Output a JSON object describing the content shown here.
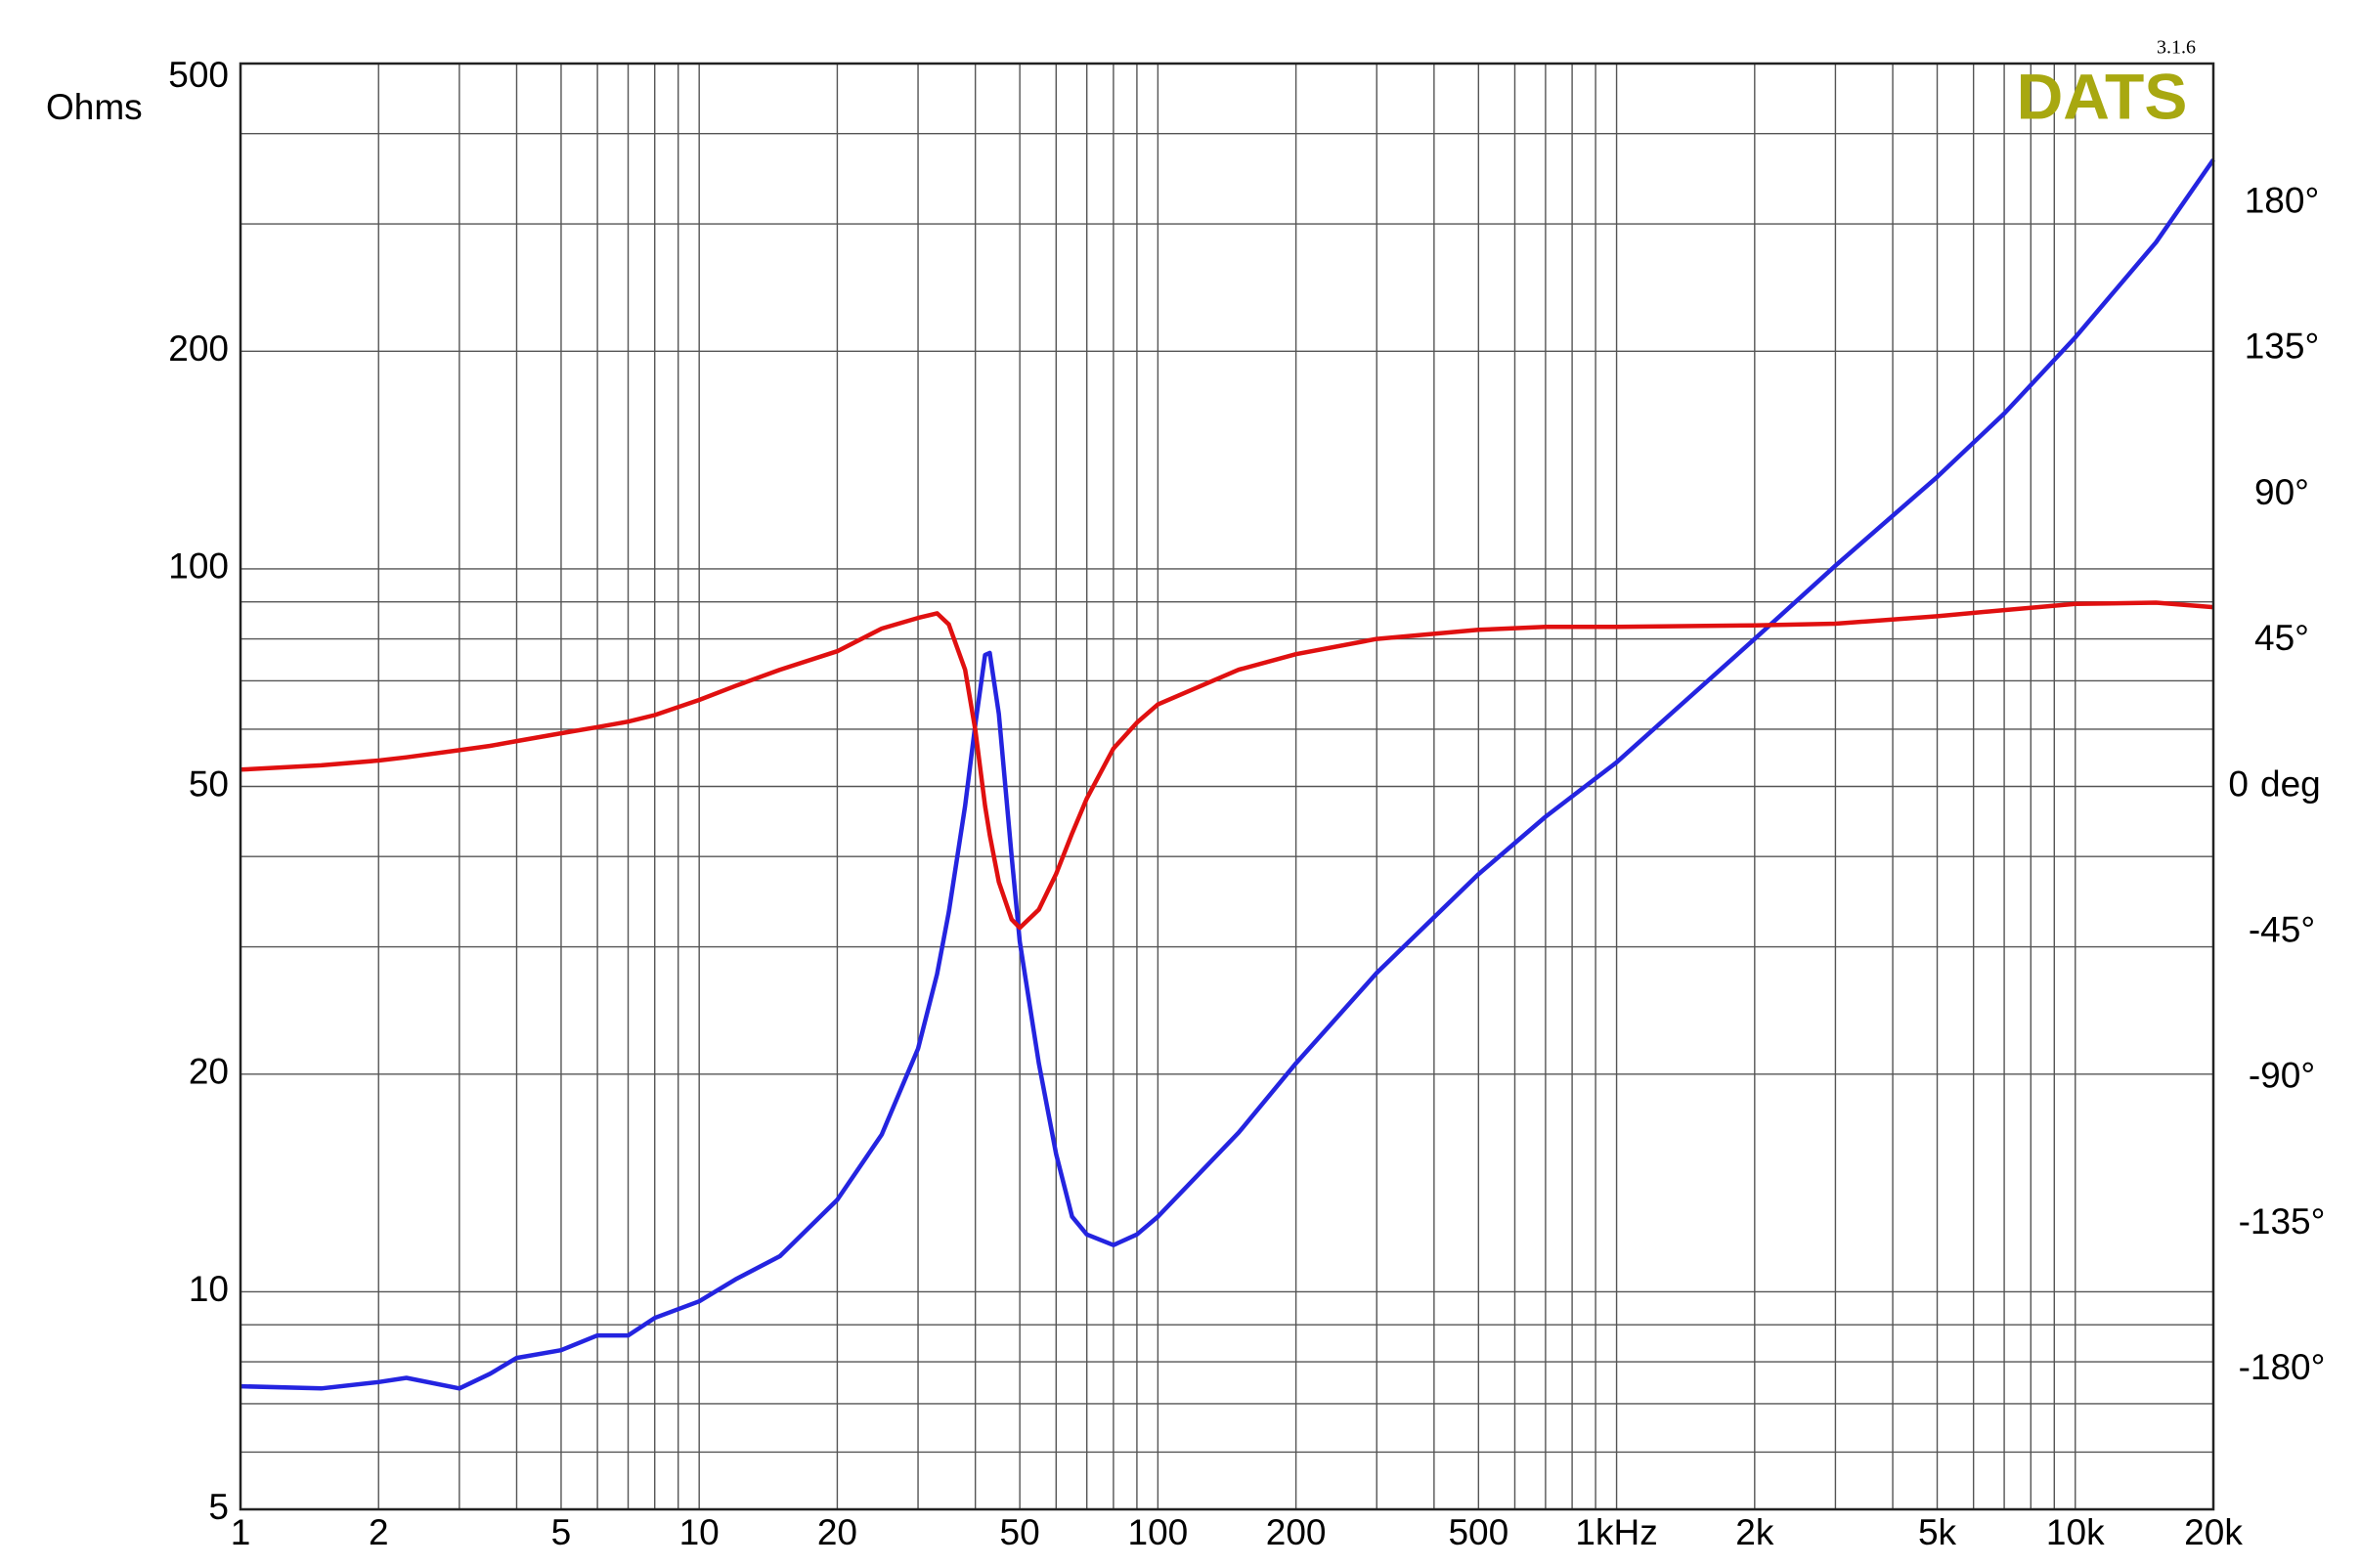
{
  "chart_data": {
    "type": "line",
    "ylabel": "Ohms",
    "y2label": "deg",
    "watermark": "DATS",
    "version": "3.1.6",
    "xscale": "log",
    "yscale": "log",
    "grid": true,
    "xlim": [
      1,
      20000
    ],
    "ylim": [
      5,
      500
    ],
    "y2lim": [
      -223,
      223
    ],
    "xticks": [
      1,
      2,
      5,
      10,
      20,
      50,
      100,
      200,
      500,
      {
        "value": 1000,
        "label": "1kHz"
      },
      {
        "value": 2000,
        "label": "2k"
      },
      {
        "value": 5000,
        "label": "5k"
      },
      {
        "value": 10000,
        "label": "10k"
      },
      {
        "value": 20000,
        "label": "20k"
      }
    ],
    "xminorticks": [
      3,
      4,
      6,
      7,
      8,
      9,
      30,
      40,
      60,
      70,
      80,
      90,
      300,
      400,
      600,
      700,
      800,
      900,
      3000,
      4000,
      6000,
      7000,
      8000,
      9000
    ],
    "yticks": [
      5,
      10,
      20,
      50,
      100,
      200,
      500
    ],
    "yminorticks": [
      6,
      7,
      8,
      9,
      30,
      40,
      60,
      70,
      80,
      90,
      300,
      400
    ],
    "y2ticks": [
      {
        "value": -180,
        "label": "-180°"
      },
      {
        "value": -135,
        "label": "-135°"
      },
      {
        "value": -90,
        "label": "-90°"
      },
      {
        "value": -45,
        "label": "-45°"
      },
      0,
      {
        "value": 45,
        "label": "45°"
      },
      {
        "value": 90,
        "label": "90°"
      },
      {
        "value": 135,
        "label": "135°"
      },
      {
        "value": 180,
        "label": "180°"
      }
    ],
    "x": [
      1,
      1.5,
      2,
      2.3,
      3,
      3.5,
      4,
      5,
      6,
      7,
      8,
      10,
      12,
      15,
      20,
      25,
      30,
      33,
      35,
      38,
      40,
      42,
      43,
      45,
      48,
      50,
      55,
      60,
      65,
      70,
      80,
      90,
      100,
      150,
      200,
      300,
      500,
      700,
      1000,
      2000,
      3000,
      5000,
      7000,
      10000,
      15000,
      20000
    ],
    "series": [
      {
        "color": "#2424e0",
        "values": [
          7.4,
          7.35,
          7.5,
          7.6,
          7.35,
          7.7,
          8.1,
          8.3,
          8.7,
          8.7,
          9.2,
          9.7,
          10.4,
          11.2,
          13.4,
          16.5,
          21.7,
          27.5,
          33.5,
          47,
          61,
          76,
          76.5,
          63,
          40,
          30.5,
          20.7,
          15.5,
          12.7,
          12,
          11.6,
          12,
          12.7,
          16.6,
          20.7,
          27.6,
          37.8,
          45.4,
          54,
          80,
          101,
          134,
          164,
          209,
          283,
          368
        ]
      },
      {
        "color": "#e01010",
        "axis": "y2",
        "values": [
          5.2,
          6.5,
          8,
          9,
          11.2,
          12.5,
          14,
          16.4,
          18.3,
          20,
          22,
          26.7,
          31,
          36,
          41.7,
          48.7,
          52,
          53.4,
          50,
          36,
          17.3,
          -6,
          -15,
          -29.5,
          -41,
          -43.6,
          -38,
          -27,
          -14.5,
          -3.7,
          11.7,
          19.7,
          25.3,
          36,
          40.8,
          45.5,
          48.3,
          49.2,
          49.2,
          49.7,
          50.2,
          52.5,
          54.4,
          56.3,
          56.7,
          55.3
        ]
      }
    ]
  }
}
